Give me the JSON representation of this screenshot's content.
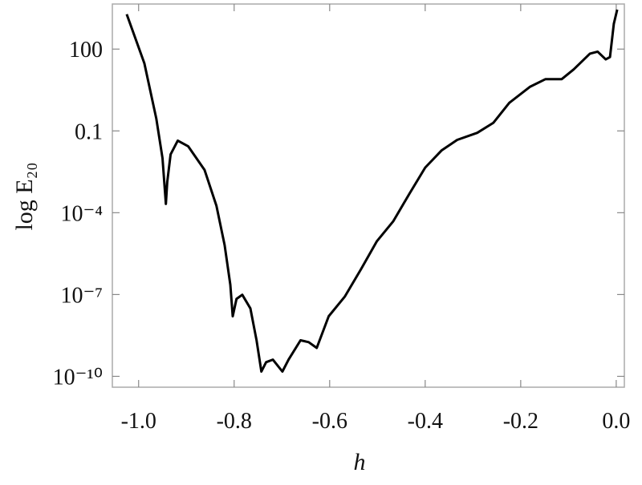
{
  "chart_data": {
    "type": "line",
    "x_label": "h",
    "y_label": "log E₂₀",
    "y_scale": "log",
    "xlim": [
      -1.055,
      0.017
    ],
    "ylim": [
      4e-11,
      4500
    ],
    "xticks": [
      {
        "value": -1,
        "label": "-1.0"
      },
      -0.8,
      -0.6,
      -0.4,
      -0.2,
      {
        "value": 0,
        "label": "0.0"
      }
    ],
    "yticks": [
      100,
      0.1,
      {
        "value": 0.0001,
        "label": "10⁻⁴"
      },
      {
        "value": 1e-07,
        "label": "10⁻⁷"
      },
      {
        "value": 1e-10,
        "label": "10⁻¹⁰"
      }
    ],
    "grid": false,
    "series": [
      {
        "color": "#000000",
        "x": [
          -1.025,
          -0.988,
          -0.963,
          -0.95,
          -0.943,
          -0.94,
          -0.933,
          -0.918,
          -0.896,
          -0.862,
          -0.837,
          -0.82,
          -0.808,
          -0.803,
          -0.795,
          -0.783,
          -0.766,
          -0.753,
          -0.743,
          -0.733,
          -0.719,
          -0.699,
          -0.686,
          -0.661,
          -0.644,
          -0.627,
          -0.602,
          -0.568,
          -0.534,
          -0.501,
          -0.467,
          -0.433,
          -0.4,
          -0.366,
          -0.333,
          -0.291,
          -0.257,
          -0.224,
          -0.181,
          -0.148,
          -0.114,
          -0.089,
          -0.055,
          -0.039,
          -0.022,
          -0.013,
          -0.005,
          0.002
        ],
        "values": [
          1900,
          30,
          0.28,
          0.01,
          0.00021,
          0.00135,
          0.0138,
          0.044,
          0.027,
          0.0037,
          0.00018,
          6.5e-06,
          2.3e-07,
          1.6e-08,
          6.9e-08,
          9.8e-08,
          3.1e-08,
          2.1e-09,
          1.5e-10,
          3.3e-10,
          4.1e-10,
          1.5e-10,
          4.1e-10,
          2.1e-09,
          1.8e-09,
          1.1e-09,
          1.6e-08,
          8.5e-08,
          8.7e-07,
          9.1e-06,
          4.8e-05,
          0.0005,
          0.0045,
          0.019,
          0.047,
          0.085,
          0.2,
          1.07,
          4.1,
          7.9,
          7.9,
          18,
          68,
          81,
          42,
          51,
          850,
          2800
        ]
      }
    ]
  }
}
